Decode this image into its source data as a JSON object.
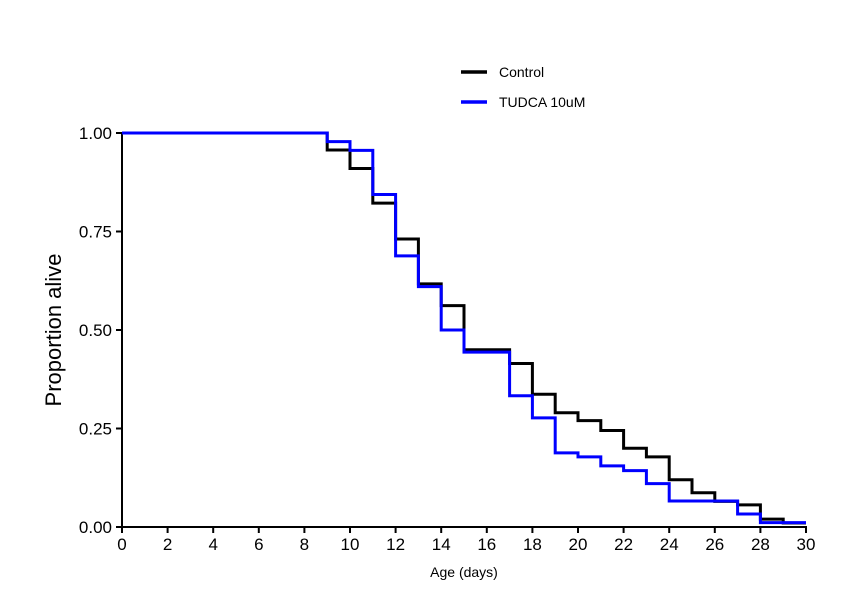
{
  "chart_data": {
    "type": "line",
    "step": true,
    "xlabel": "Age (days)",
    "ylabel": "Proportion alive",
    "xlim": [
      0,
      30
    ],
    "ylim": [
      0,
      1
    ],
    "xticks": [
      "0",
      "2",
      "4",
      "6",
      "8",
      "10",
      "12",
      "14",
      "16",
      "18",
      "20",
      "22",
      "24",
      "26",
      "28",
      "30"
    ],
    "yticks": [
      "0.00",
      "0.25",
      "0.50",
      "0.75",
      "1.00"
    ],
    "grid": false,
    "legend_position": "top",
    "series": [
      {
        "name": "Control",
        "color": "#000000",
        "x": [
          0,
          9,
          10,
          11,
          12,
          13,
          14,
          15,
          17,
          18,
          19,
          20,
          21,
          22,
          23,
          24,
          25,
          26,
          27,
          28,
          29,
          30
        ],
        "y": [
          1.0,
          0.957,
          0.91,
          0.822,
          0.731,
          0.617,
          0.562,
          0.45,
          0.415,
          0.337,
          0.29,
          0.27,
          0.245,
          0.2,
          0.178,
          0.12,
          0.087,
          0.065,
          0.056,
          0.02,
          0.01,
          0.01
        ]
      },
      {
        "name": "TUDCA 10uM",
        "color": "#0000ff",
        "x": [
          0,
          9,
          10,
          11,
          12,
          13,
          14,
          15,
          17,
          18,
          19,
          20,
          21,
          22,
          23,
          24,
          27,
          28,
          30
        ],
        "y": [
          1.0,
          0.978,
          0.956,
          0.844,
          0.688,
          0.61,
          0.5,
          0.444,
          0.333,
          0.277,
          0.188,
          0.178,
          0.155,
          0.143,
          0.11,
          0.066,
          0.033,
          0.011,
          0.011
        ]
      }
    ]
  }
}
